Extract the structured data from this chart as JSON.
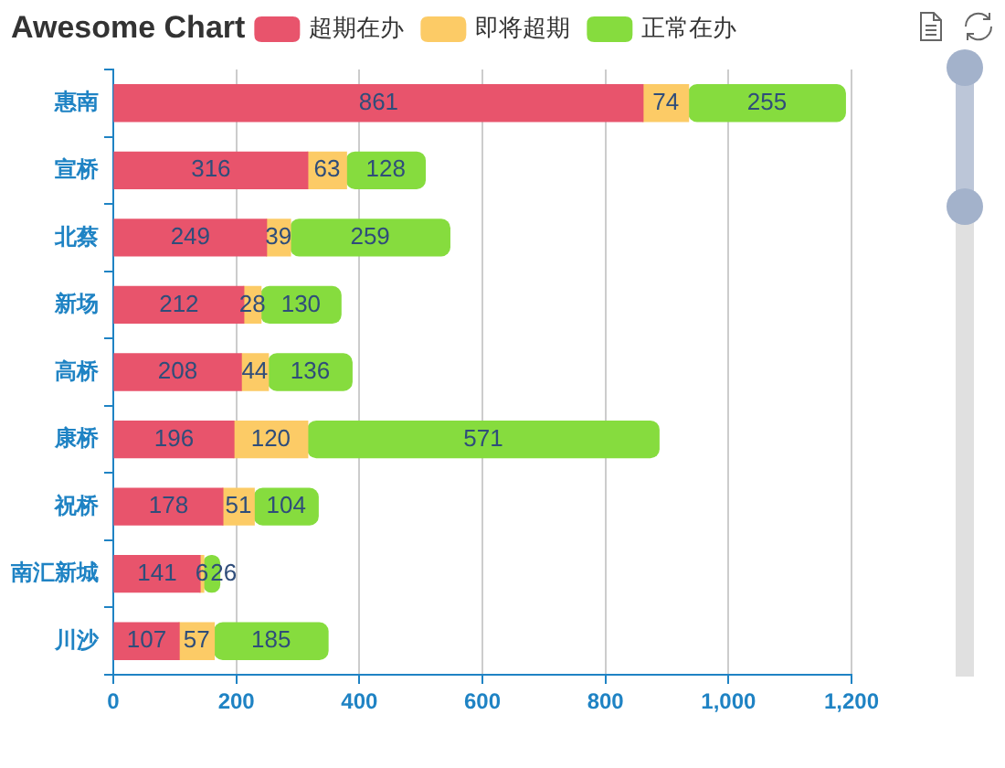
{
  "chart_data": {
    "type": "bar",
    "orientation": "horizontal",
    "stacked": true,
    "title": "Awesome Chart",
    "categories": [
      "惠南",
      "宣桥",
      "北蔡",
      "新场",
      "高桥",
      "康桥",
      "祝桥",
      "南汇新城",
      "川沙"
    ],
    "series": [
      {
        "name": "超期在办",
        "color": "#e8546c",
        "values": [
          861,
          316,
          249,
          212,
          208,
          196,
          178,
          141,
          107
        ]
      },
      {
        "name": "即将超期",
        "color": "#fccb66",
        "values": [
          74,
          63,
          39,
          28,
          44,
          120,
          51,
          6,
          57
        ]
      },
      {
        "name": "正常在办",
        "color": "#86dc3e",
        "values": [
          255,
          128,
          259,
          130,
          136,
          571,
          104,
          26,
          185
        ]
      }
    ],
    "xlim": [
      0,
      1200
    ],
    "xticks": [
      0,
      200,
      400,
      600,
      800,
      {
        "value": 1000,
        "label": "1,000"
      },
      {
        "value": 1200,
        "label": "1,200"
      }
    ],
    "grid": "x",
    "legend": "top",
    "data_labels": true
  }
}
